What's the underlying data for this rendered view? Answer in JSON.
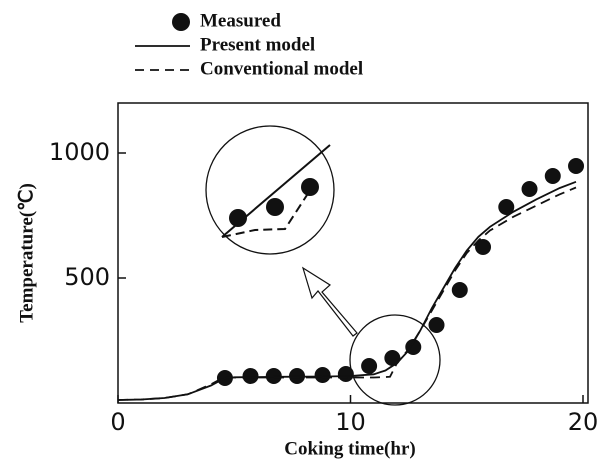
{
  "chart_data": {
    "type": "line",
    "x_label": "Coking time(hr)",
    "y_label": "Temperature(℃)",
    "xlim": [
      0,
      20
    ],
    "ylim": [
      0,
      1200
    ],
    "xticks": [
      0,
      10,
      20
    ],
    "yticks": [
      500,
      1000
    ],
    "series": [
      {
        "name": "Measured",
        "color": "#111111",
        "style": "marker",
        "x": [
          4.6,
          5.7,
          6.7,
          7.7,
          8.8,
          9.8,
          10.8,
          11.8,
          12.7,
          13.7,
          14.7,
          15.7,
          16.7,
          17.7,
          18.7,
          19.7
        ],
        "values": [
          100,
          108,
          108,
          108,
          112,
          116,
          148,
          180,
          224,
          312,
          452,
          624,
          784,
          856,
          908,
          948
        ]
      },
      {
        "name": "Present model",
        "color": "#111111",
        "style": "solid",
        "x": [
          0,
          1,
          2,
          3,
          4,
          4.5,
          5,
          7,
          9,
          10,
          11,
          11.5,
          12,
          12.5,
          13,
          13.5,
          14,
          14.5,
          15,
          15.5,
          16,
          17,
          18,
          19,
          19.7
        ],
        "values": [
          12,
          14,
          20,
          35,
          70,
          95,
          103,
          105,
          106,
          108,
          115,
          130,
          160,
          210,
          290,
          380,
          460,
          540,
          610,
          665,
          705,
          765,
          815,
          860,
          885
        ]
      },
      {
        "name": "Conventional model",
        "color": "#111111",
        "style": "dashed",
        "x": [
          0,
          1,
          2,
          3,
          4,
          4.5,
          5,
          7,
          9,
          10,
          11,
          11.7,
          12,
          12.5,
          13,
          13.5,
          14,
          14.5,
          15,
          15.5,
          16,
          17,
          18,
          19,
          19.7
        ],
        "values": [
          12,
          14,
          20,
          35,
          75,
          100,
          102,
          102,
          102,
          102,
          102,
          105,
          160,
          215,
          290,
          370,
          450,
          530,
          600,
          650,
          690,
          745,
          790,
          835,
          862
        ]
      }
    ]
  }
}
